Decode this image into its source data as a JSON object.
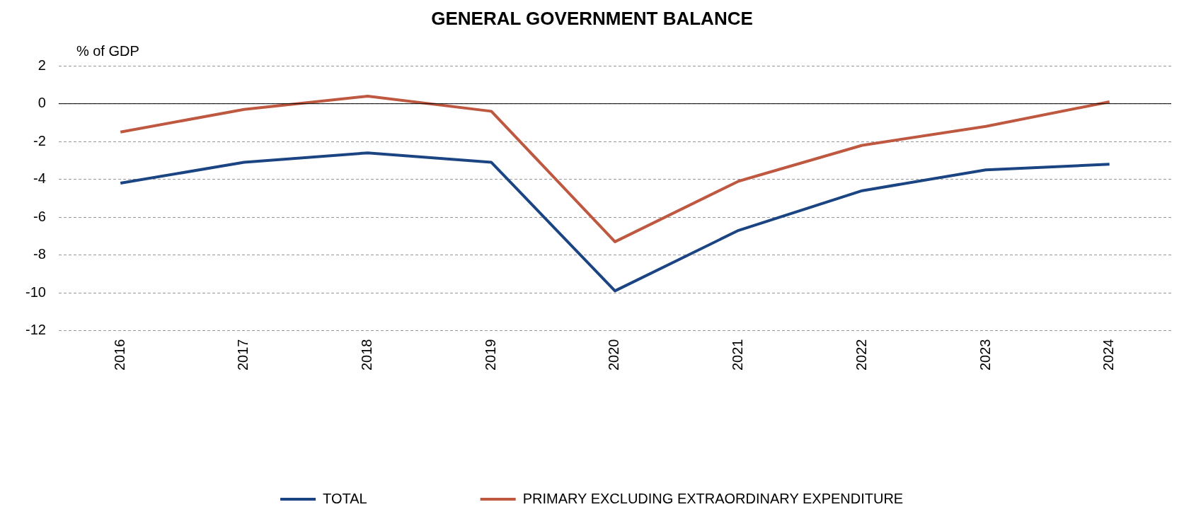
{
  "chart_data": {
    "type": "line",
    "title": "GENERAL GOVERNMENT BALANCE",
    "ylabel": "% of GDP",
    "categories": [
      "2016",
      "2017",
      "2018",
      "2019",
      "2020",
      "2021",
      "2022",
      "2023",
      "2024"
    ],
    "series": [
      {
        "name": "TOTAL",
        "color": "#1b4483",
        "values": [
          -4.2,
          -3.1,
          -2.6,
          -3.1,
          -9.9,
          -6.7,
          -4.6,
          -3.5,
          -3.2
        ]
      },
      {
        "name": "PRIMARY EXCLUDING EXTRAORDINARY EXPENDITURE",
        "color": "#be5840",
        "values": [
          -1.5,
          -0.3,
          0.4,
          -0.4,
          -7.3,
          -4.1,
          -2.2,
          -1.2,
          0.1
        ]
      }
    ],
    "ylim": [
      -12,
      2
    ],
    "yticks": [
      -12,
      -10,
      -8,
      -6,
      -4,
      -2,
      0,
      2
    ],
    "grid": "y",
    "legend": "bottom",
    "marker": "none",
    "line_style": "solid",
    "ref_lines": [
      {
        "axis": "y",
        "value": 0,
        "color": "#000000",
        "line_style": "solid"
      }
    ]
  }
}
